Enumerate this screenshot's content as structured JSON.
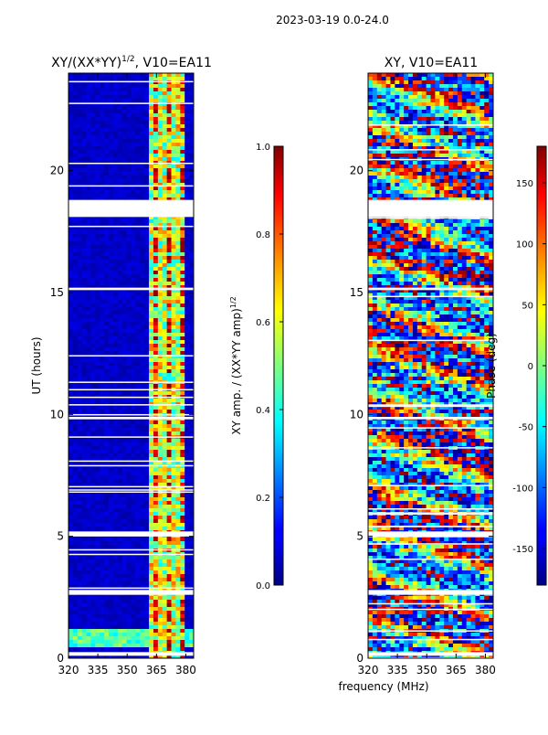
{
  "figure": {
    "suptitle": "2023-03-19 0.0-24.0",
    "shared_xlabel": "frequency (MHz)"
  },
  "chart_data": [
    {
      "type": "heatmap",
      "title": "XY/(XX*YY)",
      "title_exponent": "1/2",
      "title_suffix": ", V10=EA11",
      "xlabel": "",
      "ylabel": "UT (hours)",
      "xlim": [
        320,
        384
      ],
      "ylim": [
        0,
        24
      ],
      "xticks": [
        320,
        335,
        350,
        365,
        380
      ],
      "yticks": [
        0,
        5,
        10,
        15,
        20
      ],
      "colorbar": {
        "label": "XY amp. / (XX*YY amp)",
        "label_exponent": "1/2",
        "range": [
          0,
          1
        ],
        "ticks": [
          "0.0",
          "0.2",
          "0.4",
          "0.6",
          "0.8",
          "1.0"
        ]
      },
      "masked_rows_ut": [
        [
          18.1,
          18.8
        ],
        [
          15.1,
          15.2
        ],
        [
          9.8,
          9.9
        ],
        [
          5.0,
          5.2
        ],
        [
          2.6,
          2.8
        ],
        [
          0.1,
          0.25
        ]
      ],
      "high_band_mhz": [
        361,
        380
      ],
      "high_band_level": 0.6
    },
    {
      "type": "heatmap",
      "title": "XY, V10=EA11",
      "xlabel": "frequency (MHz)",
      "ylabel": "",
      "xlim": [
        320,
        384
      ],
      "ylim": [
        0,
        24
      ],
      "xticks": [
        320,
        335,
        350,
        365,
        380
      ],
      "yticks": [
        0,
        5,
        10,
        15,
        20
      ],
      "colorbar": {
        "label": "Phase (deg)",
        "range": [
          -180,
          180
        ],
        "ticks": [
          "-150",
          "-100",
          "-50",
          "0",
          "50",
          "100",
          "150"
        ]
      },
      "masked_rows_ut": [
        [
          18.1,
          18.8
        ],
        [
          15.1,
          15.2
        ],
        [
          9.8,
          9.9
        ],
        [
          5.0,
          5.2
        ],
        [
          2.6,
          2.8
        ],
        [
          0.1,
          0.25
        ]
      ]
    }
  ]
}
